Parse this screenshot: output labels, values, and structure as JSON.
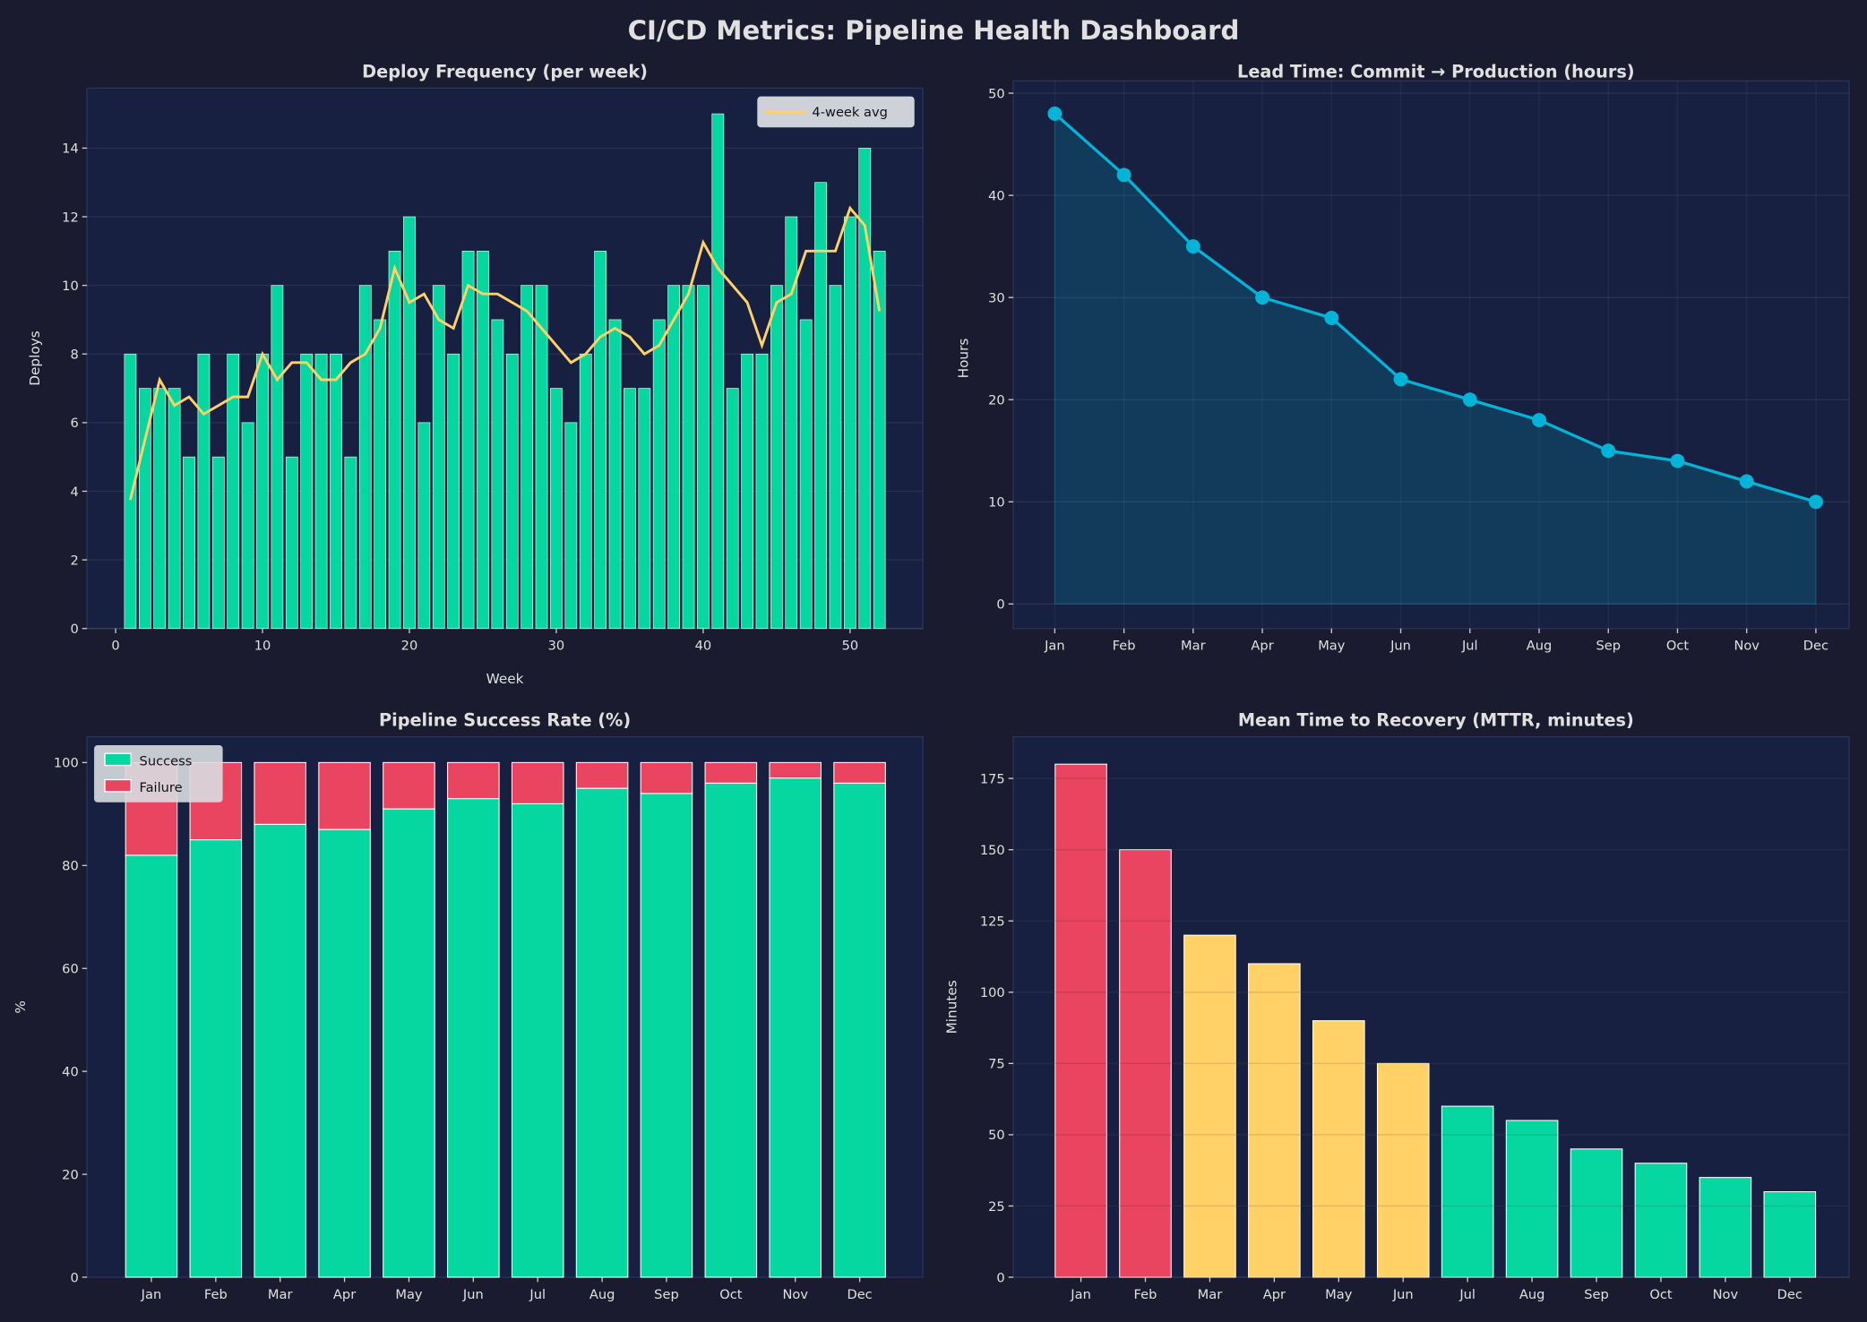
{
  "title": "CI/CD Metrics: Pipeline Health Dashboard",
  "colors": {
    "background": "#1b1b2f",
    "axes": "#172040",
    "green": "#06d6a0",
    "red": "#e94560",
    "yellow": "#ffd166",
    "cyan": "#00b4d8",
    "text": "#e0e0e0"
  },
  "chart_data": [
    {
      "type": "bar",
      "title": "Deploy Frequency (per week)",
      "xlabel": "Week",
      "ylabel": "Deploys",
      "xlim": [
        -2,
        55
      ],
      "ylim": [
        0,
        15.75
      ],
      "xticks": [
        0,
        10,
        20,
        30,
        40,
        50
      ],
      "yticks": [
        0,
        2,
        4,
        6,
        8,
        10,
        12,
        14
      ],
      "grid": true,
      "legend": "top-right",
      "x": [
        1,
        2,
        3,
        4,
        5,
        6,
        7,
        8,
        9,
        10,
        11,
        12,
        13,
        14,
        15,
        16,
        17,
        18,
        19,
        20,
        21,
        22,
        23,
        24,
        25,
        26,
        27,
        28,
        29,
        30,
        31,
        32,
        33,
        34,
        35,
        36,
        37,
        38,
        39,
        40,
        41,
        42,
        43,
        44,
        45,
        46,
        47,
        48,
        49,
        50,
        51,
        52
      ],
      "values": [
        8,
        7,
        7,
        7,
        5,
        8,
        5,
        8,
        6,
        8,
        10,
        5,
        8,
        8,
        8,
        5,
        10,
        9,
        11,
        12,
        6,
        10,
        8,
        11,
        11,
        9,
        8,
        10,
        10,
        7,
        6,
        8,
        11,
        9,
        7,
        7,
        9,
        10,
        10,
        10,
        15,
        7,
        8,
        8,
        10,
        12,
        9,
        13,
        10,
        12,
        14,
        11
      ],
      "line": {
        "name": "4-week avg",
        "values": [
          3.75,
          5.5,
          7.25,
          6.5,
          6.75,
          6.25,
          6.5,
          6.75,
          6.75,
          8,
          7.25,
          7.75,
          7.75,
          7.25,
          7.25,
          7.75,
          8,
          8.75,
          10.5,
          9.5,
          9.75,
          9,
          8.75,
          10,
          9.75,
          9.75,
          9.5,
          9.25,
          8.75,
          8.25,
          7.75,
          8,
          8.5,
          8.75,
          8.5,
          8,
          8.25,
          9,
          9.75,
          11.25,
          10.5,
          10,
          9.5,
          8.25,
          9.5,
          9.75,
          11,
          11,
          11,
          12.25,
          11.75,
          9.25
        ]
      }
    },
    {
      "type": "area",
      "title": "Lead Time: Commit → Production (hours)",
      "xlabel": "",
      "ylabel": "Hours",
      "ylim": [
        -2.4,
        51.2
      ],
      "yticks": [
        0,
        10,
        20,
        30,
        40,
        50
      ],
      "grid": true,
      "categories": [
        "Jan",
        "Feb",
        "Mar",
        "Apr",
        "May",
        "Jun",
        "Jul",
        "Aug",
        "Sep",
        "Oct",
        "Nov",
        "Dec"
      ],
      "values": [
        48,
        42,
        35,
        30,
        28,
        22,
        20,
        18,
        15,
        14,
        12,
        10
      ]
    },
    {
      "type": "bar",
      "stacked": true,
      "title": "Pipeline Success Rate (%)",
      "xlabel": "",
      "ylabel": "%",
      "ylim": [
        0,
        105
      ],
      "yticks": [
        0,
        20,
        40,
        60,
        80,
        100
      ],
      "grid": false,
      "legend": "top-left",
      "categories": [
        "Jan",
        "Feb",
        "Mar",
        "Apr",
        "May",
        "Jun",
        "Jul",
        "Aug",
        "Sep",
        "Oct",
        "Nov",
        "Dec"
      ],
      "series": [
        {
          "name": "Success",
          "values": [
            82,
            85,
            88,
            87,
            91,
            93,
            92,
            95,
            94,
            96,
            97,
            96
          ]
        },
        {
          "name": "Failure",
          "values": [
            18,
            15,
            12,
            13,
            9,
            7,
            8,
            5,
            6,
            4,
            3,
            4
          ]
        }
      ]
    },
    {
      "type": "bar",
      "title": "Mean Time to Recovery (MTTR, minutes)",
      "xlabel": "",
      "ylabel": "Minutes",
      "ylim": [
        0,
        189.6
      ],
      "yticks": [
        0,
        25,
        50,
        75,
        100,
        125,
        150,
        175
      ],
      "grid": true,
      "categories": [
        "Jan",
        "Feb",
        "Mar",
        "Apr",
        "May",
        "Jun",
        "Jul",
        "Aug",
        "Sep",
        "Oct",
        "Nov",
        "Dec"
      ],
      "values": [
        180,
        150,
        120,
        110,
        90,
        75,
        60,
        55,
        45,
        40,
        35,
        30
      ],
      "bar_colors": [
        "#e94560",
        "#e94560",
        "#ffd166",
        "#ffd166",
        "#ffd166",
        "#ffd166",
        "#06d6a0",
        "#06d6a0",
        "#06d6a0",
        "#06d6a0",
        "#06d6a0",
        "#06d6a0"
      ]
    }
  ]
}
